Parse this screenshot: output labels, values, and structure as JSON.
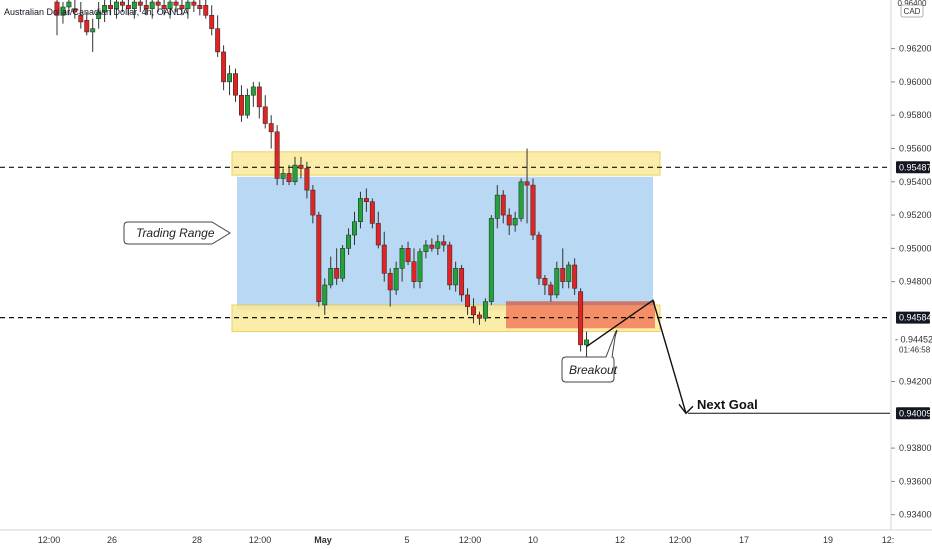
{
  "header": {
    "title": "Australian Dollar/Canadian Dollar, 4h, OANDA",
    "currency": "CAD"
  },
  "colors": {
    "bull": "#22a33a",
    "bear": "#e02424",
    "range_fill": "#b8d8f3",
    "zone_fill": "#fbe99a",
    "zone_border": "#e6c94e",
    "breakout_fill": "#f4845f",
    "breakout_top": "#c9796b",
    "label_bg": "#131722",
    "label_text": "#ffffff"
  },
  "annotations": {
    "trading_range": "Trading Range",
    "breakout": "Breakout",
    "next_goal": "Next Goal"
  },
  "price_labels": {
    "resistance": "0.95487",
    "support": "0.94584",
    "target": "0.94009",
    "last": "0.94452",
    "countdown": "01:46:58",
    "partial_top": "0.96400"
  },
  "chart_data": {
    "type": "candlestick",
    "title": "Australian Dollar/Canadian Dollar, 4h, OANDA",
    "y_ticks": [
      "0.93400",
      "0.93600",
      "0.93800",
      "0.94200",
      "0.94800",
      "0.95000",
      "0.95200",
      "0.95400",
      "0.95600",
      "0.95800",
      "0.96000",
      "0.96200"
    ],
    "ylim": [
      0.9335,
      0.9648
    ],
    "x_ticks": [
      "12:00",
      "26",
      "28",
      "12:00",
      "May",
      "5",
      "12:00",
      "10",
      "12",
      "12:00",
      "17",
      "19",
      "12:"
    ],
    "levels": {
      "resistance": 0.95487,
      "support": 0.94584,
      "target": 0.94009,
      "last": 0.94452
    },
    "zones": {
      "range": [
        0.9463,
        0.9543
      ],
      "upper_band": [
        0.9544,
        0.9558
      ],
      "lower_band": [
        0.945,
        0.9466
      ],
      "breakout_box": [
        0.9452,
        0.9467
      ]
    },
    "candles": [
      [
        0.9648,
        0.9652,
        0.9628,
        0.964
      ],
      [
        0.964,
        0.9648,
        0.9635,
        0.9645
      ],
      [
        0.9645,
        0.9652,
        0.964,
        0.9648
      ],
      [
        0.9644,
        0.965,
        0.9638,
        0.9642
      ],
      [
        0.964,
        0.9648,
        0.9632,
        0.9636
      ],
      [
        0.9637,
        0.9642,
        0.9628,
        0.963
      ],
      [
        0.963,
        0.9638,
        0.9618,
        0.9632
      ],
      [
        0.9638,
        0.9648,
        0.9632,
        0.9642
      ],
      [
        0.9642,
        0.965,
        0.9636,
        0.9646
      ],
      [
        0.9646,
        0.9652,
        0.964,
        0.9644
      ],
      [
        0.9644,
        0.965,
        0.9638,
        0.9648
      ],
      [
        0.9648,
        0.9652,
        0.9642,
        0.9646
      ],
      [
        0.9646,
        0.9652,
        0.964,
        0.9644
      ],
      [
        0.9644,
        0.965,
        0.9638,
        0.9648
      ],
      [
        0.9648,
        0.9652,
        0.9642,
        0.9646
      ],
      [
        0.9646,
        0.9652,
        0.964,
        0.9644
      ],
      [
        0.9644,
        0.965,
        0.9638,
        0.9648
      ],
      [
        0.9648,
        0.9652,
        0.9642,
        0.9646
      ],
      [
        0.9646,
        0.9652,
        0.964,
        0.9644
      ],
      [
        0.9644,
        0.965,
        0.9638,
        0.9648
      ],
      [
        0.9648,
        0.9652,
        0.9642,
        0.9646
      ],
      [
        0.9646,
        0.9652,
        0.964,
        0.9644
      ],
      [
        0.9644,
        0.965,
        0.9638,
        0.9648
      ],
      [
        0.9648,
        0.9652,
        0.9642,
        0.9646
      ],
      [
        0.9646,
        0.9652,
        0.964,
        0.9644
      ],
      [
        0.9646,
        0.9652,
        0.9638,
        0.964
      ],
      [
        0.964,
        0.9646,
        0.9628,
        0.9632
      ],
      [
        0.9632,
        0.964,
        0.9615,
        0.9618
      ],
      [
        0.9618,
        0.9622,
        0.9595,
        0.96
      ],
      [
        0.96,
        0.961,
        0.9592,
        0.9605
      ],
      [
        0.9605,
        0.9608,
        0.9588,
        0.9592
      ],
      [
        0.9592,
        0.9598,
        0.9576,
        0.958
      ],
      [
        0.958,
        0.9596,
        0.9578,
        0.9592
      ],
      [
        0.9592,
        0.96,
        0.9585,
        0.9597
      ],
      [
        0.9597,
        0.96,
        0.9578,
        0.9585
      ],
      [
        0.9585,
        0.9592,
        0.9572,
        0.9575
      ],
      [
        0.9575,
        0.958,
        0.956,
        0.957
      ],
      [
        0.957,
        0.9574,
        0.9538,
        0.9542
      ],
      [
        0.9542,
        0.9548,
        0.9538,
        0.9545
      ],
      [
        0.9545,
        0.955,
        0.9538,
        0.954
      ],
      [
        0.954,
        0.9555,
        0.9538,
        0.955
      ],
      [
        0.955,
        0.9555,
        0.9542,
        0.9548
      ],
      [
        0.9548,
        0.9552,
        0.953,
        0.9535
      ],
      [
        0.9535,
        0.9538,
        0.9515,
        0.952
      ],
      [
        0.952,
        0.9522,
        0.9465,
        0.9468
      ],
      [
        0.9466,
        0.9482,
        0.946,
        0.9478
      ],
      [
        0.9478,
        0.9495,
        0.9476,
        0.9488
      ],
      [
        0.9488,
        0.95,
        0.9478,
        0.9482
      ],
      [
        0.9482,
        0.9502,
        0.948,
        0.95
      ],
      [
        0.95,
        0.9512,
        0.9496,
        0.9508
      ],
      [
        0.9508,
        0.9522,
        0.9502,
        0.9516
      ],
      [
        0.9516,
        0.9534,
        0.9512,
        0.953
      ],
      [
        0.953,
        0.9536,
        0.9522,
        0.9528
      ],
      [
        0.9528,
        0.953,
        0.9512,
        0.9515
      ],
      [
        0.9515,
        0.9522,
        0.95,
        0.9502
      ],
      [
        0.9502,
        0.951,
        0.948,
        0.9485
      ],
      [
        0.9485,
        0.9488,
        0.9465,
        0.9475
      ],
      [
        0.9475,
        0.9492,
        0.9472,
        0.9488
      ],
      [
        0.9488,
        0.9502,
        0.948,
        0.95
      ],
      [
        0.95,
        0.9504,
        0.949,
        0.9492
      ],
      [
        0.9492,
        0.95,
        0.9476,
        0.948
      ],
      [
        0.948,
        0.95,
        0.9476,
        0.9498
      ],
      [
        0.9498,
        0.9505,
        0.9494,
        0.9502
      ],
      [
        0.9502,
        0.9506,
        0.9498,
        0.95
      ],
      [
        0.95,
        0.9508,
        0.9496,
        0.9504
      ],
      [
        0.9504,
        0.9508,
        0.9498,
        0.9502
      ],
      [
        0.9502,
        0.9504,
        0.9475,
        0.9478
      ],
      [
        0.9478,
        0.9492,
        0.9474,
        0.9488
      ],
      [
        0.9488,
        0.949,
        0.9468,
        0.9472
      ],
      [
        0.9472,
        0.9476,
        0.946,
        0.9465
      ],
      [
        0.9465,
        0.947,
        0.9455,
        0.946
      ],
      [
        0.946,
        0.9462,
        0.9454,
        0.9458
      ],
      [
        0.9458,
        0.947,
        0.9456,
        0.9468
      ],
      [
        0.9468,
        0.952,
        0.9466,
        0.9518
      ],
      [
        0.9518,
        0.9538,
        0.9512,
        0.9532
      ],
      [
        0.9532,
        0.9535,
        0.9515,
        0.952
      ],
      [
        0.952,
        0.9524,
        0.9508,
        0.9514
      ],
      [
        0.9514,
        0.9522,
        0.951,
        0.9518
      ],
      [
        0.9518,
        0.9542,
        0.9516,
        0.954
      ],
      [
        0.954,
        0.956,
        0.9515,
        0.9538
      ],
      [
        0.9538,
        0.9542,
        0.9505,
        0.9508
      ],
      [
        0.9508,
        0.951,
        0.9478,
        0.9482
      ],
      [
        0.9482,
        0.9484,
        0.9472,
        0.9478
      ],
      [
        0.9478,
        0.948,
        0.9468,
        0.9472
      ],
      [
        0.9472,
        0.9492,
        0.947,
        0.9488
      ],
      [
        0.9488,
        0.95,
        0.9476,
        0.948
      ],
      [
        0.948,
        0.9492,
        0.9476,
        0.949
      ],
      [
        0.949,
        0.9494,
        0.9472,
        0.9476
      ],
      [
        0.9474,
        0.9476,
        0.9438,
        0.9442
      ],
      [
        0.9442,
        0.945,
        0.9434,
        0.9445
      ]
    ]
  }
}
